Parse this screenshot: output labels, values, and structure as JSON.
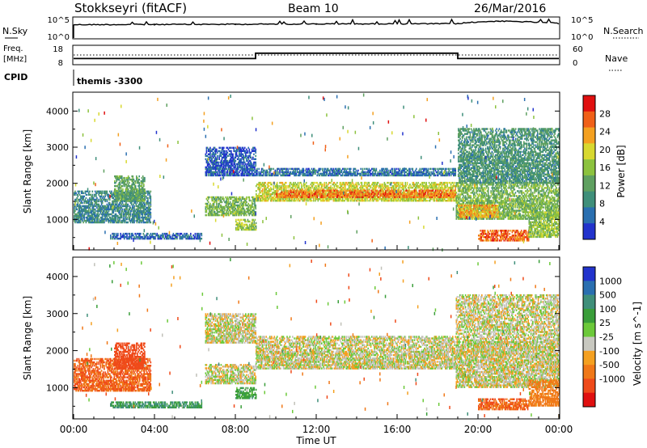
{
  "header": {
    "station": "Stokkseyri (fitACF)",
    "beam": "Beam 10",
    "date": "26/Mar/2016"
  },
  "strip_labels": {
    "nsky": "N.Sky",
    "nsearch": "N.Search",
    "freq_line1": "Freq.",
    "freq_line2": "[MHz]",
    "nave": "Nave",
    "cpid": "CPID",
    "cpid_value": "themis -3300",
    "nsky_ticks": [
      "10^5",
      "10^0"
    ],
    "nsearch_ticks": [
      "10^5",
      "10^0"
    ],
    "freq_ticks": [
      "18",
      "8"
    ],
    "nave_ticks": [
      "60",
      "0"
    ]
  },
  "colors": {
    "power_scale": [
      "#2233cc",
      "#2a6fb0",
      "#3f8f7a",
      "#5fa060",
      "#8cc23e",
      "#d8d830",
      "#f4a020",
      "#f06018",
      "#e01010"
    ],
    "velocity_scale": [
      "#2233cc",
      "#2a6fb0",
      "#3f8f7a",
      "#3a9e3a",
      "#6cc93a",
      "#c8c8c0",
      "#f4a020",
      "#f07818",
      "#ef4a1a",
      "#e01010"
    ],
    "ground_scatter": "#c0c0b8"
  },
  "chart_data": [
    {
      "type": "line",
      "title": "N.Sky / N.Search",
      "y_scale": "log",
      "ylim_left": [
        1,
        100000
      ],
      "ylim_right": [
        1,
        100000
      ],
      "x": [
        "00:00",
        "04:00",
        "08:00",
        "12:00",
        "16:00",
        "19:00",
        "21:00",
        "24:00"
      ],
      "series": [
        {
          "name": "N.Sky",
          "values": [
            2000,
            2200,
            2500,
            3000,
            3200,
            3500,
            15000,
            4000
          ]
        },
        {
          "name": "N.Search",
          "values": [
            3000,
            3000,
            3000,
            3000,
            3000,
            3000,
            3000,
            3000
          ]
        }
      ]
    },
    {
      "type": "line",
      "title": "Freq./Nave",
      "ylim_left": [
        8,
        18
      ],
      "ylim_right": [
        0,
        60
      ],
      "series": [
        {
          "name": "Freq. [MHz]",
          "x": [
            "00:00",
            "09:00",
            "09:00",
            "19:00",
            "19:00",
            "24:00"
          ],
          "values": [
            11,
            11,
            14,
            14,
            11,
            11
          ]
        },
        {
          "name": "Nave",
          "x": [
            "00:00",
            "24:00"
          ],
          "values": [
            30,
            30
          ]
        }
      ]
    },
    {
      "type": "heatmap",
      "title": "Power",
      "xlabel": "",
      "ylabel": "Slant Range [km]",
      "x_range": [
        "00:00",
        "24:00"
      ],
      "ylim": [
        180,
        4500
      ],
      "yticks": [
        1000,
        2000,
        3000,
        4000
      ],
      "colorbar_label": "Power [dB]",
      "colorbar_ticks": [
        "4",
        "8",
        "12",
        "16",
        "20",
        "24",
        "28"
      ],
      "regions": [
        {
          "t0": 0.0,
          "t1": 3.8,
          "r0": 900,
          "r1": 1800,
          "value": 10
        },
        {
          "t0": 2.0,
          "t1": 3.5,
          "r0": 1500,
          "r1": 2200,
          "value": 14
        },
        {
          "t0": 1.8,
          "t1": 6.3,
          "r0": 450,
          "r1": 600,
          "value": 7
        },
        {
          "t0": 6.5,
          "t1": 9.0,
          "r0": 1100,
          "r1": 1600,
          "value": 16
        },
        {
          "t0": 6.5,
          "t1": 9.0,
          "r0": 2200,
          "r1": 3000,
          "value": 6
        },
        {
          "t0": 8.0,
          "t1": 9.0,
          "r0": 700,
          "r1": 1000,
          "value": 18
        },
        {
          "t0": 9.0,
          "t1": 18.9,
          "r0": 1500,
          "r1": 2000,
          "value": 20
        },
        {
          "t0": 10.0,
          "t1": 18.9,
          "r0": 1600,
          "r1": 1800,
          "value": 27
        },
        {
          "t0": 9.0,
          "t1": 18.9,
          "r0": 2200,
          "r1": 2400,
          "value": 8
        },
        {
          "t0": 18.9,
          "t1": 24.0,
          "r0": 1000,
          "r1": 2000,
          "value": 16
        },
        {
          "t0": 19.0,
          "t1": 21.0,
          "r0": 1050,
          "r1": 1400,
          "value": 24
        },
        {
          "t0": 20.0,
          "t1": 22.5,
          "r0": 400,
          "r1": 700,
          "value": 28
        },
        {
          "t0": 19.0,
          "t1": 24.0,
          "r0": 2000,
          "r1": 3500,
          "value": 12
        },
        {
          "t0": 22.5,
          "t1": 24.0,
          "r0": 500,
          "r1": 1200,
          "value": 18
        }
      ]
    },
    {
      "type": "heatmap",
      "title": "Velocity",
      "xlabel": "Time UT",
      "ylabel": "Slant Range [km]",
      "x_range": [
        "00:00",
        "24:00"
      ],
      "xticks": [
        "00:00",
        "04:00",
        "08:00",
        "12:00",
        "16:00",
        "20:00",
        "00:00"
      ],
      "ylim": [
        180,
        4500
      ],
      "yticks": [
        1000,
        2000,
        3000,
        4000
      ],
      "colorbar_label": "Velocity [m s^-1]",
      "colorbar_ticks": [
        "1000",
        "500",
        "100",
        "25",
        "-25",
        "-100",
        "-500",
        "-1000"
      ],
      "regions": [
        {
          "t0": 0.0,
          "t1": 3.8,
          "r0": 900,
          "r1": 1800,
          "value": -300
        },
        {
          "t0": 2.0,
          "t1": 3.5,
          "r0": 1500,
          "r1": 2200,
          "value": -400
        },
        {
          "t0": 1.8,
          "t1": 6.3,
          "r0": 450,
          "r1": 600,
          "value": 200
        },
        {
          "t0": 6.5,
          "t1": 9.0,
          "r0": 1100,
          "r1": 1600,
          "value": 0
        },
        {
          "t0": 6.5,
          "t1": 9.0,
          "r0": 2200,
          "r1": 3000,
          "value": 0
        },
        {
          "t0": 8.0,
          "t1": 9.0,
          "r0": 700,
          "r1": 1000,
          "value": 150
        },
        {
          "t0": 9.0,
          "t1": 18.9,
          "r0": 1500,
          "r1": 2400,
          "value": 0
        },
        {
          "t0": 18.9,
          "t1": 24.0,
          "r0": 1000,
          "r1": 3500,
          "value": 0
        },
        {
          "t0": 20.0,
          "t1": 22.5,
          "r0": 400,
          "r1": 700,
          "value": -300
        },
        {
          "t0": 22.5,
          "t1": 24.0,
          "r0": 500,
          "r1": 1200,
          "value": -150
        }
      ]
    }
  ]
}
